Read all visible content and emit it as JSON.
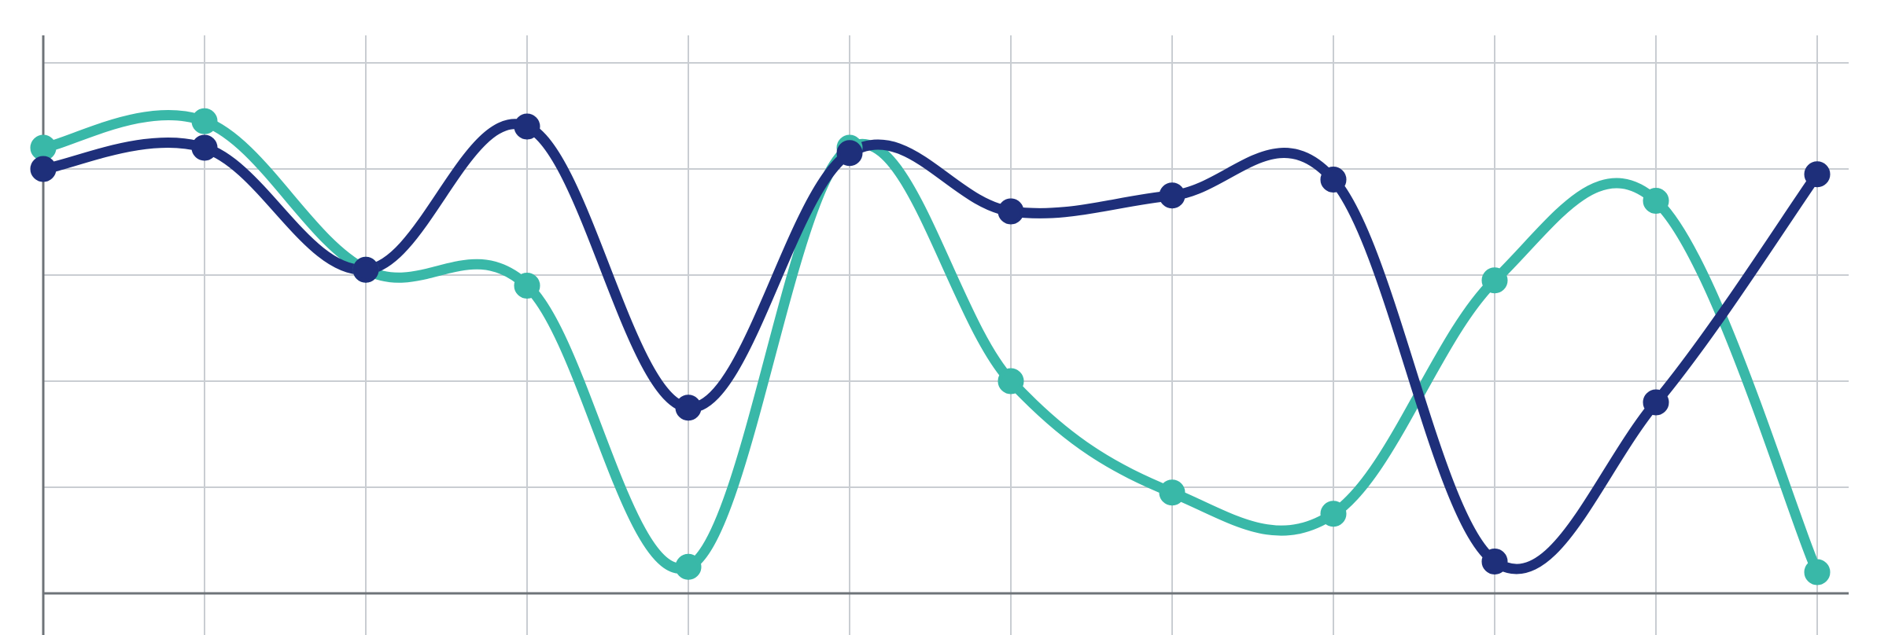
{
  "chart_data": {
    "type": "line",
    "x": [
      0,
      1,
      2,
      3,
      4,
      5,
      6,
      7,
      8,
      9,
      10,
      11
    ],
    "ylim": [
      0,
      5
    ],
    "grid": true,
    "legend": "none",
    "series": [
      {
        "color": "#1e2f7a",
        "marker_fill": "#1e2f7a",
        "values": [
          4.0,
          4.2,
          3.05,
          4.4,
          1.75,
          4.15,
          3.6,
          3.75,
          3.9,
          0.3,
          1.8,
          3.95
        ]
      },
      {
        "color": "#39b8a8",
        "marker_fill": "#39b8a8",
        "values": [
          4.2,
          4.45,
          3.05,
          2.9,
          0.25,
          4.2,
          2.0,
          0.95,
          0.75,
          2.95,
          3.7,
          0.2
        ]
      }
    ]
  }
}
